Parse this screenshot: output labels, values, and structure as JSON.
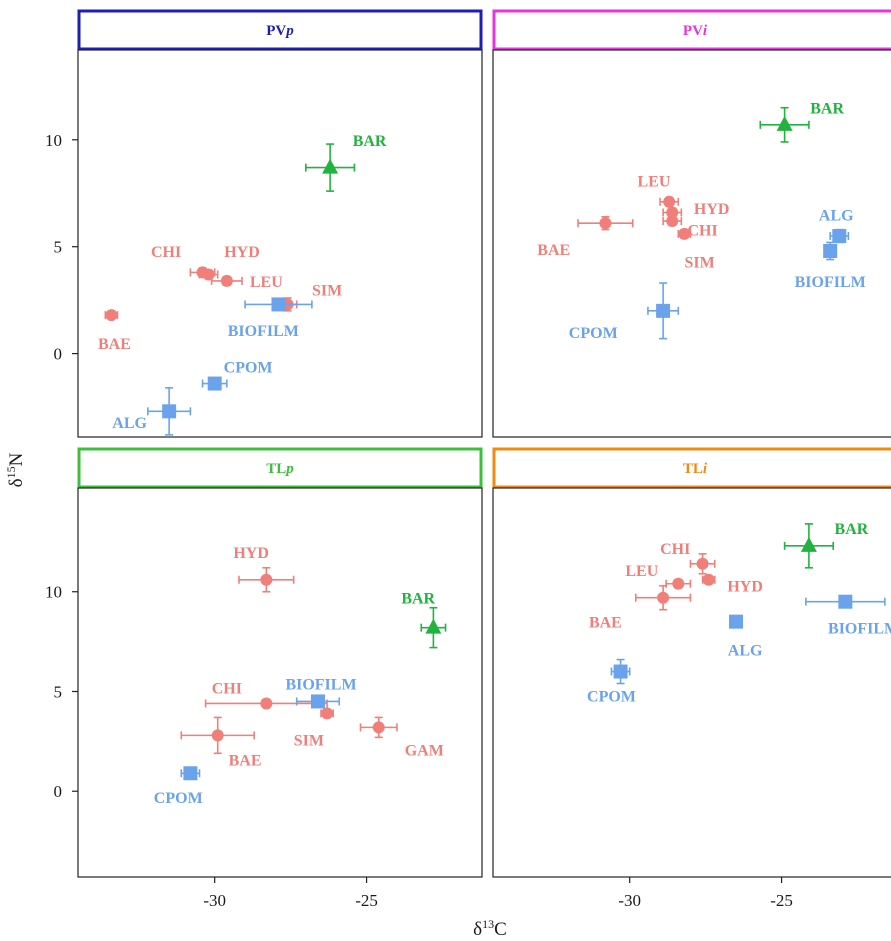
{
  "chart_data": {
    "type": "scatter",
    "xlabel_main": "δ",
    "xlabel_sup": "13",
    "xlabel_tail": "C",
    "ylabel_main": "δ",
    "ylabel_sup": "15",
    "ylabel_tail": "N",
    "colors": {
      "consumer": "#f07f7a",
      "source": "#6aa3ec",
      "predator": "#22b33e"
    },
    "xlim": [
      -34.5,
      -21.2
    ],
    "ylim_top": [
      -3.9,
      14.2
    ],
    "ylim_bottom": [
      -4.3,
      15.2
    ],
    "xticks": [
      -30,
      -25
    ],
    "xtick_labels": [
      "-30",
      "-25"
    ],
    "yticks": [
      0,
      5,
      10
    ],
    "ytick_labels": [
      "0",
      "5",
      "10"
    ],
    "panels": [
      {
        "title_main": "PV",
        "title_italic": "p",
        "title_color": "#1d1db8",
        "row": 0,
        "col": 0,
        "points": [
          {
            "label": "BAR",
            "group": "predator",
            "shape": "triangle",
            "x": -26.2,
            "y": 8.7,
            "xerr": 0.8,
            "yerr": 1.1,
            "label_x": -24.9,
            "label_y": 10.0
          },
          {
            "label": "CHI",
            "group": "consumer",
            "shape": "circle",
            "x": -30.4,
            "y": 3.8,
            "xerr": 0.4,
            "yerr": 0.2,
            "label_x": -31.6,
            "label_y": 4.8
          },
          {
            "label": "HYD",
            "group": "consumer",
            "shape": "circle",
            "x": -30.2,
            "y": 3.7,
            "xerr": 0.3,
            "yerr": 0.2,
            "label_x": -29.1,
            "label_y": 4.8
          },
          {
            "label": "LEU",
            "group": "consumer",
            "shape": "circle",
            "x": -29.6,
            "y": 3.4,
            "xerr": 0.5,
            "yerr": 0.2,
            "label_x": -28.3,
            "label_y": 3.4
          },
          {
            "label": "SIM",
            "group": "consumer",
            "shape": "circle",
            "x": -27.6,
            "y": 2.3,
            "xerr": 0.3,
            "yerr": 0.3,
            "label_x": -26.3,
            "label_y": 3.0
          },
          {
            "label": "BAE",
            "group": "consumer",
            "shape": "circle",
            "x": -33.4,
            "y": 1.8,
            "xerr": 0.2,
            "yerr": 0.15,
            "label_x": -33.3,
            "label_y": 0.5
          },
          {
            "label": "BIOFILM",
            "group": "source",
            "shape": "square",
            "x": -27.9,
            "y": 2.3,
            "xerr": 1.1,
            "yerr": 0.2,
            "label_x": -28.4,
            "label_y": 1.1
          },
          {
            "label": "CPOM",
            "group": "source",
            "shape": "square",
            "x": -30.0,
            "y": -1.4,
            "xerr": 0.4,
            "yerr": 0.2,
            "label_x": -28.9,
            "label_y": -0.6
          },
          {
            "label": "ALG",
            "group": "source",
            "shape": "square",
            "x": -31.5,
            "y": -2.7,
            "xerr": 0.7,
            "yerr": 1.1,
            "label_x": -32.8,
            "label_y": -3.2
          }
        ]
      },
      {
        "title_main": "PV",
        "title_italic": "i",
        "title_color": "#e733e0",
        "row": 0,
        "col": 1,
        "points": [
          {
            "label": "BAR",
            "group": "predator",
            "shape": "triangle",
            "x": -24.9,
            "y": 10.7,
            "xerr": 0.8,
            "yerr": 0.8,
            "label_x": -23.5,
            "label_y": 11.5
          },
          {
            "label": "LEU",
            "group": "consumer",
            "shape": "circle",
            "x": -28.7,
            "y": 7.1,
            "xerr": 0.3,
            "yerr": 0.2,
            "label_x": -29.2,
            "label_y": 8.1
          },
          {
            "label": "HYD",
            "group": "consumer",
            "shape": "circle",
            "x": -28.6,
            "y": 6.6,
            "xerr": 0.3,
            "yerr": 0.2,
            "label_x": -27.3,
            "label_y": 6.8
          },
          {
            "label": "CHI",
            "group": "consumer",
            "shape": "circle",
            "x": -28.6,
            "y": 6.2,
            "xerr": 0.3,
            "yerr": 0.2,
            "label_x": -27.6,
            "label_y": 5.8
          },
          {
            "label": "SIM",
            "group": "consumer",
            "shape": "circle",
            "x": -28.2,
            "y": 5.6,
            "xerr": 0.2,
            "yerr": 0.2,
            "label_x": -27.7,
            "label_y": 4.3
          },
          {
            "label": "BAE",
            "group": "consumer",
            "shape": "circle",
            "x": -30.8,
            "y": 6.1,
            "xerr": 0.9,
            "yerr": 0.3,
            "label_x": -32.5,
            "label_y": 4.9
          },
          {
            "label": "ALG",
            "group": "source",
            "shape": "square",
            "x": -23.1,
            "y": 5.5,
            "xerr": 0.3,
            "yerr": 0.3,
            "label_x": -23.2,
            "label_y": 6.5
          },
          {
            "label": "BIOFILM",
            "group": "source",
            "shape": "square",
            "x": -23.4,
            "y": 4.8,
            "xerr": 0.1,
            "yerr": 0.4,
            "label_x": -23.4,
            "label_y": 3.4
          },
          {
            "label": "CPOM",
            "group": "source",
            "shape": "square",
            "x": -28.9,
            "y": 2.0,
            "xerr": 0.5,
            "yerr": 1.3,
            "label_x": -31.2,
            "label_y": 1.0
          }
        ]
      },
      {
        "title_main": "TL",
        "title_italic": "p",
        "title_color": "#3bc03b",
        "row": 1,
        "col": 0,
        "points": [
          {
            "label": "HYD",
            "group": "consumer",
            "shape": "circle",
            "x": -28.3,
            "y": 10.6,
            "xerr": 0.9,
            "yerr": 0.6,
            "label_x": -28.8,
            "label_y": 12.0
          },
          {
            "label": "BAR",
            "group": "predator",
            "shape": "triangle",
            "x": -22.8,
            "y": 8.2,
            "xerr": 0.4,
            "yerr": 1.0,
            "label_x": -23.3,
            "label_y": 9.7
          },
          {
            "label": "CHI",
            "group": "consumer",
            "shape": "circle",
            "x": -28.3,
            "y": 4.4,
            "xerr": 2.0,
            "yerr": 0.2,
            "label_x": -29.6,
            "label_y": 5.2
          },
          {
            "label": "BIOFILM",
            "group": "source",
            "shape": "square",
            "x": -26.6,
            "y": 4.5,
            "xerr": 0.7,
            "yerr": 0.2,
            "label_x": -26.5,
            "label_y": 5.4
          },
          {
            "label": "SIM",
            "group": "consumer",
            "shape": "circle",
            "x": -26.3,
            "y": 3.9,
            "xerr": 0.2,
            "yerr": 0.2,
            "label_x": -26.9,
            "label_y": 2.6
          },
          {
            "label": "GAM",
            "group": "consumer",
            "shape": "circle",
            "x": -24.6,
            "y": 3.2,
            "xerr": 0.6,
            "yerr": 0.5,
            "label_x": -23.1,
            "label_y": 2.1
          },
          {
            "label": "BAE",
            "group": "consumer",
            "shape": "circle",
            "x": -29.9,
            "y": 2.8,
            "xerr": 1.2,
            "yerr": 0.9,
            "label_x": -29.0,
            "label_y": 1.6
          },
          {
            "label": "CPOM",
            "group": "source",
            "shape": "square",
            "x": -30.8,
            "y": 0.9,
            "xerr": 0.3,
            "yerr": 0.2,
            "label_x": -31.2,
            "label_y": -0.3
          }
        ]
      },
      {
        "title_main": "TL",
        "title_italic": "i",
        "title_color": "#f08a12",
        "row": 1,
        "col": 1,
        "points": [
          {
            "label": "BAR",
            "group": "predator",
            "shape": "triangle",
            "x": -24.1,
            "y": 12.3,
            "xerr": 0.8,
            "yerr": 1.1,
            "label_x": -22.7,
            "label_y": 13.2
          },
          {
            "label": "CHI",
            "group": "consumer",
            "shape": "circle",
            "x": -27.6,
            "y": 11.4,
            "xerr": 0.4,
            "yerr": 0.5,
            "label_x": -28.5,
            "label_y": 12.2
          },
          {
            "label": "LEU",
            "group": "consumer",
            "shape": "circle",
            "x": -28.4,
            "y": 10.4,
            "xerr": 0.4,
            "yerr": 0.2,
            "label_x": -29.6,
            "label_y": 11.1
          },
          {
            "label": "HYD",
            "group": "consumer",
            "shape": "circle",
            "x": -27.4,
            "y": 10.6,
            "xerr": 0.2,
            "yerr": 0.2,
            "label_x": -26.2,
            "label_y": 10.3
          },
          {
            "label": "BAE",
            "group": "consumer",
            "shape": "circle",
            "x": -28.9,
            "y": 9.7,
            "xerr": 0.9,
            "yerr": 0.6,
            "label_x": -30.8,
            "label_y": 8.5
          },
          {
            "label": "BIOFILM",
            "group": "source",
            "shape": "square",
            "x": -22.9,
            "y": 9.5,
            "xerr": 1.3,
            "yerr": 0.2,
            "label_x": -22.3,
            "label_y": 8.2
          },
          {
            "label": "ALG",
            "group": "source",
            "shape": "square",
            "x": -26.5,
            "y": 8.5,
            "xerr": 0.2,
            "yerr": 0.2,
            "label_x": -26.2,
            "label_y": 7.1
          },
          {
            "label": "CPOM",
            "group": "source",
            "shape": "square",
            "x": -30.3,
            "y": 6.0,
            "xerr": 0.3,
            "yerr": 0.6,
            "label_x": -30.6,
            "label_y": 4.8
          }
        ]
      }
    ]
  }
}
